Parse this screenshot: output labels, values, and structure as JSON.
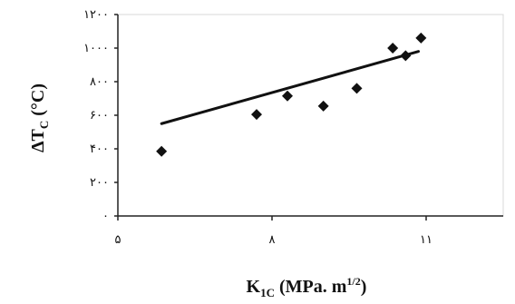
{
  "chart_data": {
    "type": "scatter",
    "title": "",
    "ylabel_main": "ΔT",
    "ylabel_sub": "C",
    "ylabel_unit": " (°C)",
    "xlabel_main": "K",
    "xlabel_sub": "1C",
    "xlabel_unit": " (MPa. m",
    "xlabel_sup": "1/2",
    "xlabel_end": ")",
    "xlim": [
      5,
      12.5
    ],
    "ylim": [
      0,
      1200
    ],
    "x_ticks": [
      {
        "value": 5,
        "label": "۵"
      },
      {
        "value": 8,
        "label": "۸"
      },
      {
        "value": 11,
        "label": "۱۱"
      }
    ],
    "y_ticks": [
      {
        "value": 0,
        "label": "۰"
      },
      {
        "value": 200,
        "label": "۲۰۰"
      },
      {
        "value": 400,
        "label": "۴۰۰"
      },
      {
        "value": 600,
        "label": "۶۰۰"
      },
      {
        "value": 800,
        "label": "۸۰۰"
      },
      {
        "value": 1000,
        "label": "۱۰۰۰"
      },
      {
        "value": 1200,
        "label": "۱۲۰۰"
      }
    ],
    "points": [
      {
        "x": 5.85,
        "y": 385
      },
      {
        "x": 7.7,
        "y": 605
      },
      {
        "x": 8.3,
        "y": 715
      },
      {
        "x": 9.0,
        "y": 655
      },
      {
        "x": 9.65,
        "y": 760
      },
      {
        "x": 10.35,
        "y": 1000
      },
      {
        "x": 10.6,
        "y": 955
      },
      {
        "x": 10.9,
        "y": 1060
      }
    ],
    "trendline": {
      "x": [
        5.85,
        10.85
      ],
      "y": [
        550,
        980
      ]
    },
    "grid": false,
    "legend": "none"
  }
}
